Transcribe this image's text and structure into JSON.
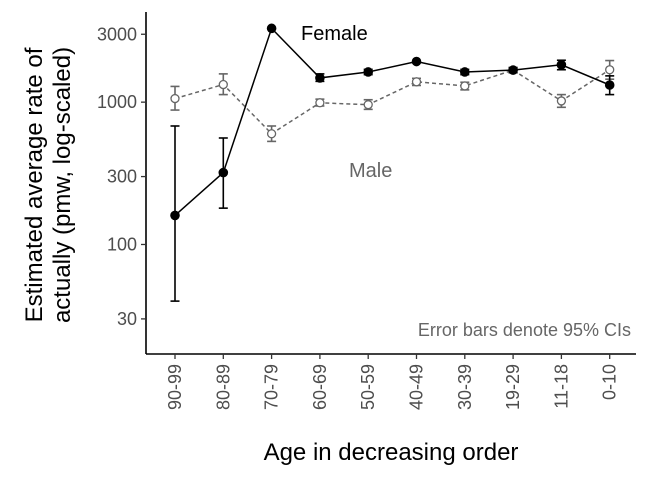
{
  "chart_data": {
    "type": "line",
    "title": "",
    "xlabel": "Age in decreasing order",
    "ylabel_line1": "Estimated average rate of",
    "ylabel_line2": "actually (pmw, log-scaled)",
    "y_scale": "log",
    "ylim": [
      17,
      4300
    ],
    "yticks": [
      30,
      100,
      300,
      1000,
      3000
    ],
    "categories": [
      "90-99",
      "80-89",
      "70-79",
      "60-69",
      "50-59",
      "40-49",
      "30-39",
      "19-29",
      "11-18",
      "0-10"
    ],
    "grid": false,
    "legend": "none (direct labels)",
    "annotation": "Error bars denote 95% CIs",
    "series": [
      {
        "name": "Female",
        "style": "solid",
        "marker": "filled circle",
        "color": "#000000",
        "values": [
          160,
          320,
          3300,
          1480,
          1630,
          1930,
          1630,
          1680,
          1830,
          1320
        ],
        "ci_low": [
          40,
          180,
          null,
          1400,
          1560,
          null,
          1560,
          1610,
          1690,
          1130
        ],
        "ci_high": [
          680,
          560,
          null,
          1580,
          1700,
          null,
          1700,
          1750,
          1970,
          1530
        ]
      },
      {
        "name": "Male",
        "style": "dashed",
        "marker": "open circle",
        "color": "#666666",
        "values": [
          1060,
          1330,
          600,
          990,
          960,
          1390,
          1300,
          1680,
          1020,
          1690
        ],
        "ci_low": [
          880,
          1130,
          530,
          940,
          890,
          1310,
          1220,
          1610,
          920,
          1450
        ],
        "ci_high": [
          1290,
          1580,
          680,
          1050,
          1040,
          1470,
          1380,
          1750,
          1130,
          1960
        ]
      }
    ]
  }
}
